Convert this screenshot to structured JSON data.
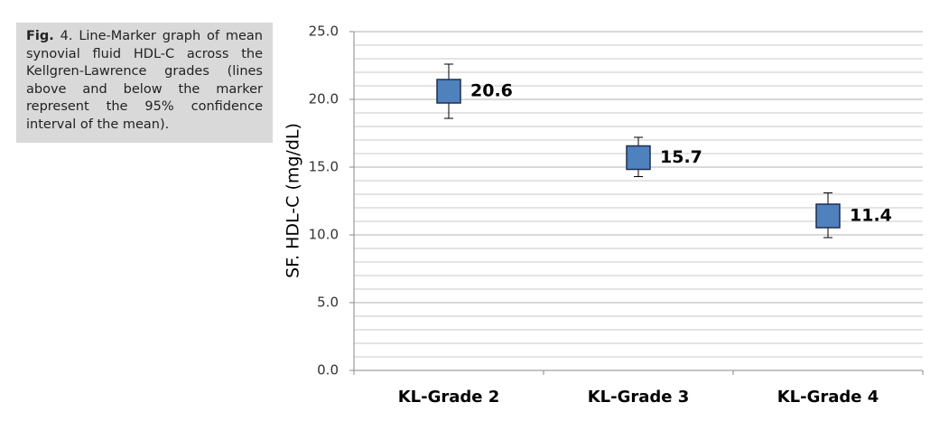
{
  "caption": {
    "label": "Fig.",
    "number": "4.",
    "text": "Line-Marker graph of mean synovial fluid HDL-C across the Kellgren-Lawrence grades (lines above and below the marker represent the 95% confidence interval of the mean)."
  },
  "chart_data": {
    "type": "line-marker",
    "y_label": "SF. HDL-C (mg/dL)",
    "categories": [
      "KL-Grade 2",
      "KL-Grade 3",
      "KL-Grade 4"
    ],
    "values": [
      20.6,
      15.7,
      11.4
    ],
    "ci_low": [
      18.6,
      14.3,
      9.8
    ],
    "ci_high": [
      22.6,
      17.2,
      13.1
    ],
    "color": "#4f81bd",
    "ylim": [
      0,
      25
    ],
    "yticks": [
      {
        "value": 0,
        "label": "0.0"
      },
      {
        "value": 5,
        "label": "5.0"
      },
      {
        "value": 10,
        "label": "10.0"
      },
      {
        "value": 15,
        "label": "15.0"
      },
      {
        "value": 20,
        "label": "20.0"
      },
      {
        "value": 25,
        "label": "25.0"
      }
    ],
    "minor_grid_step": 1,
    "grid": true
  }
}
